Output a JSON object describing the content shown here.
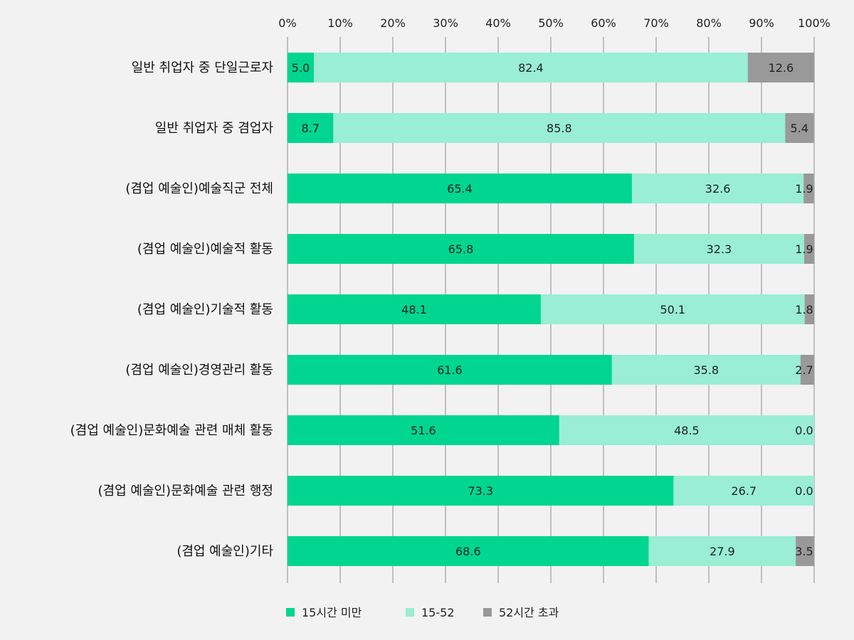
{
  "chart_data": {
    "type": "bar",
    "orientation": "horizontal",
    "stacked": true,
    "percent_axis": true,
    "xlim": [
      0,
      100
    ],
    "xticks": [
      "0%",
      "10%",
      "20%",
      "30%",
      "40%",
      "50%",
      "60%",
      "70%",
      "80%",
      "90%",
      "100%"
    ],
    "categories": [
      "일반 취업자 중 단일근로자",
      "일반 취업자 중 겸업자",
      "(겸업 예술인)예술직군 전체",
      "(겸업 예술인)예술적 활동",
      "(겸업 예술인)기술적 활동",
      "(겸업 예술인)경영관리 활동",
      "(겸업 예술인)문화예술 관련 매체 활동",
      "(겸업 예술인)문화예술 관련 행정",
      "(겸업 예술인)기타"
    ],
    "series": [
      {
        "name": "15시간 미만",
        "color": "#00d68f",
        "values": [
          5.0,
          8.7,
          65.4,
          65.8,
          48.1,
          61.6,
          51.6,
          73.3,
          68.6
        ],
        "labels": [
          "5.0",
          "8.7",
          "65.4",
          "65.8",
          "48.1",
          "61.6",
          "51.6",
          "73.3",
          "68.6"
        ]
      },
      {
        "name": "15-52",
        "color": "#99eed4",
        "values": [
          82.4,
          85.8,
          32.6,
          32.3,
          50.1,
          35.8,
          48.5,
          26.7,
          27.9
        ],
        "labels": [
          "82.4",
          "85.8",
          "32.6",
          "32.3",
          "50.1",
          "35.8",
          "48.5",
          "26.7",
          "27.9"
        ]
      },
      {
        "name": "52시간 초과",
        "color": "#999999",
        "values": [
          12.6,
          5.4,
          1.9,
          1.9,
          1.8,
          2.7,
          0.0,
          0.0,
          3.5
        ],
        "labels": [
          "12.6",
          "5.4",
          "1.9",
          "1.9",
          "1.8",
          "2.7",
          "0.0",
          "0.0",
          "3.5"
        ]
      }
    ],
    "grid": true,
    "legend_position": "bottom"
  }
}
